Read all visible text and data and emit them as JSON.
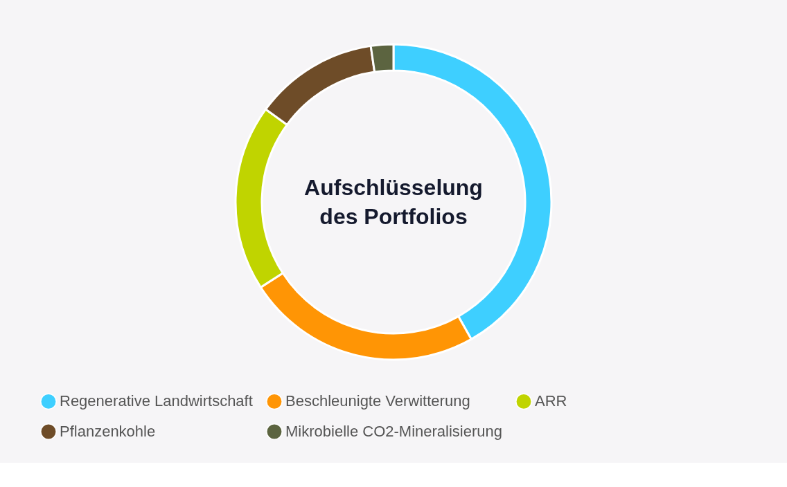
{
  "chart_data": {
    "type": "donut",
    "title": "Aufschlüsselung des Portfolios",
    "categories": [
      "Regenerative Landwirtschaft",
      "Beschleunigte Verwitterung",
      "ARR",
      "Pflanzenkohle",
      "Mikrobielle CO2-Mineralisierung"
    ],
    "values": [
      41.8,
      24.1,
      19.1,
      12.7,
      2.3
    ],
    "colors": [
      "#3ecfff",
      "#ff9505",
      "#c0d400",
      "#6e4c28",
      "#5c6440"
    ],
    "legend": "bottom"
  }
}
